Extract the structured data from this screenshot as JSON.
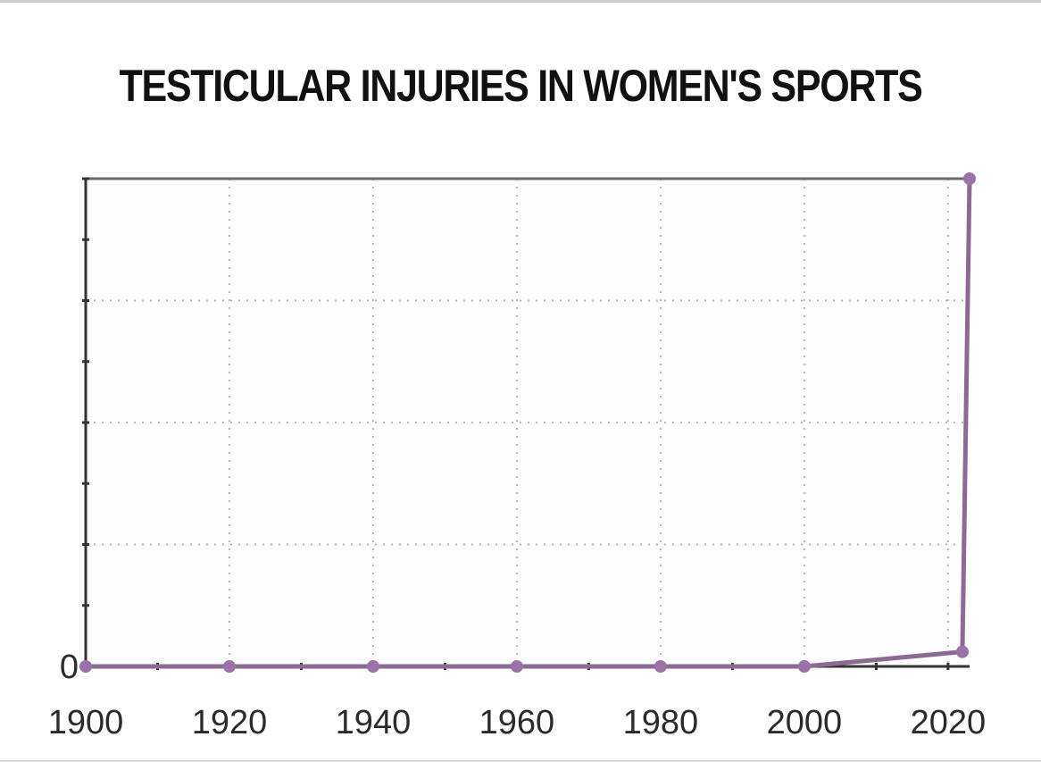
{
  "chart_data": {
    "type": "line",
    "title": "TESTICULAR INJURIES IN WOMEN'S SPORTS",
    "xlabel": "",
    "ylabel": "",
    "x_ticks": [
      "1900",
      "1920",
      "1940",
      "1960",
      "1980",
      "2000",
      "2020"
    ],
    "y_ticks": [
      "0"
    ],
    "xlim": [
      1900,
      2023
    ],
    "ylim": [
      0,
      100
    ],
    "grid": true,
    "colors": {
      "line": "#8b6a93",
      "marker": "#9a72a6",
      "axis": "#333333",
      "grid": "#b8b8b8"
    },
    "series": [
      {
        "x": [
          1900,
          1920,
          1940,
          1960,
          1980,
          2000,
          2022,
          2023
        ],
        "y": [
          0,
          0,
          0,
          0,
          0,
          0,
          3,
          100
        ]
      }
    ]
  }
}
